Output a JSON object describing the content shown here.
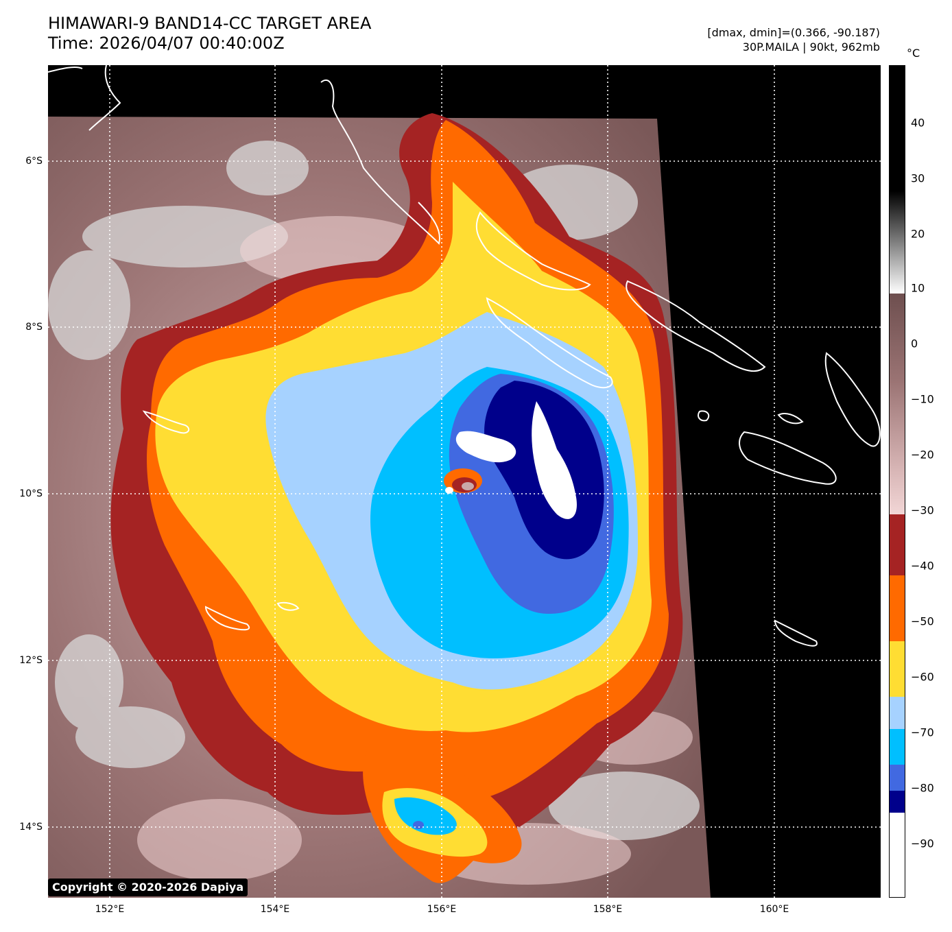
{
  "header": {
    "title_line1": "HIMAWARI-9 BAND14-CC TARGET AREA",
    "title_line2": "Time: 2026/04/07 00:40:00Z",
    "range_text": "[dmax, dmin]=(0.366, -90.187)",
    "storm_text": "30P.MAILA | 90kt, 962mb"
  },
  "map": {
    "x_ticks": [
      "152°E",
      "154°E",
      "156°E",
      "158°E",
      "160°E"
    ],
    "y_ticks": [
      "6°S",
      "8°S",
      "10°S",
      "12°S",
      "14°S"
    ],
    "gridlines": "dotted white",
    "copyright": "Copyright © 2020-2026 Dapiya"
  },
  "colorbar": {
    "unit": "°C",
    "range": [
      -100,
      50
    ],
    "labels": [
      "40",
      "30",
      "20",
      "10",
      "0",
      "−10",
      "−20",
      "−30",
      "−40",
      "−50",
      "−60",
      "−70",
      "−80",
      "−90"
    ],
    "colors": {
      "black": "#000000",
      "brown": "#6e4f4f",
      "pink": "#f2d6d6",
      "red": "#a52323",
      "orange": "#ff6a00",
      "yellow": "#ffdd33",
      "lightblue": "#a6d2ff",
      "cyan": "#00bfff",
      "blue": "#4169e1",
      "navy": "#00008b",
      "white": "#ffffff"
    }
  }
}
